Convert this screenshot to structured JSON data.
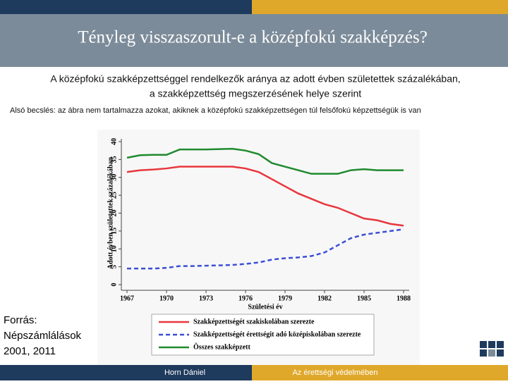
{
  "slide": {
    "title": "Tényleg visszaszorult-e a középfokú szakképzés?",
    "subtitle": [
      "A középfokú szakképzettséggel rendelkezők aránya az adott évben születettek  százalékában,",
      "a szakképzettség megszerzésének helye szerint"
    ],
    "note": "Alsó becslés: az ábra nem tartalmazza azokat, akiknek a középfokú szakképzettségen túl felsőfokú képzettségük is van",
    "source": [
      "Forrás:",
      "Népszámlálások",
      "2001, 2011"
    ],
    "footer_left": "Horn Dániel",
    "footer_right": "Az érettségi védelmében"
  },
  "chart_data": {
    "type": "line",
    "x": [
      1967,
      1968,
      1969,
      1970,
      1971,
      1972,
      1973,
      1974,
      1975,
      1976,
      1977,
      1978,
      1979,
      1980,
      1981,
      1982,
      1983,
      1984,
      1985,
      1986,
      1987,
      1988
    ],
    "xlim": [
      1967,
      1988
    ],
    "xticks": [
      1967,
      1970,
      1973,
      1976,
      1979,
      1982,
      1985,
      1988
    ],
    "ylim": [
      0,
      40
    ],
    "yticks": [
      0,
      5,
      10,
      15,
      20,
      25,
      30,
      35,
      40
    ],
    "x_label": "Születési év",
    "y_label": "Adott évben születettek százalékában",
    "series": [
      {
        "name": "Szakképzettségét szakiskolában szerezte",
        "color": "#e8363d",
        "style": "solid",
        "values": [
          31.5,
          32,
          32.2,
          32.5,
          33,
          33,
          33,
          33,
          33,
          32.5,
          31.5,
          29.5,
          27.5,
          25.5,
          24,
          22.5,
          21.5,
          20,
          18.5,
          18,
          17,
          16.5
        ]
      },
      {
        "name": "Szakképzettségét érettségit adó középiskolában szerezte",
        "color": "#3a4fd6",
        "style": "dashed",
        "values": [
          4.5,
          4.5,
          4.5,
          4.7,
          5.2,
          5.2,
          5.3,
          5.4,
          5.5,
          5.8,
          6.2,
          7,
          7.4,
          7.6,
          8,
          9,
          11,
          13,
          14,
          14.5,
          15,
          15.5
        ]
      },
      {
        "name": "Összes szakképzett",
        "color": "#1f8a2e",
        "style": "solid",
        "values": [
          35.5,
          36.2,
          36.3,
          36.3,
          37.8,
          37.8,
          37.8,
          37.9,
          38,
          37.5,
          36.5,
          34,
          33,
          32,
          31,
          31,
          31,
          32,
          32.3,
          32,
          32,
          32
        ]
      }
    ]
  }
}
